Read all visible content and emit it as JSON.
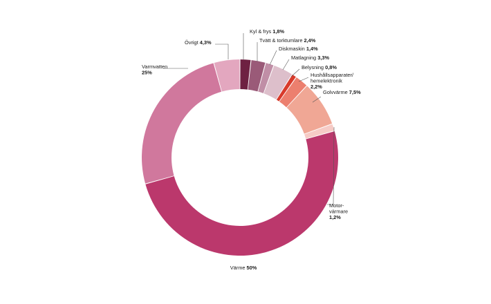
{
  "chart_data": {
    "type": "pie",
    "style": "donut",
    "title": "",
    "slices": [
      {
        "label": "Kyl & frys",
        "value": 1.8,
        "display": "1,8%",
        "color": "#6e2142"
      },
      {
        "label": "Tvätt & torktumlare",
        "value": 2.4,
        "display": "2,4%",
        "color": "#9a5a78"
      },
      {
        "label": "Diskmaskin",
        "value": 1.4,
        "display": "1,4%",
        "color": "#c08ea6"
      },
      {
        "label": "Matlagning",
        "value": 3.3,
        "display": "3,3%",
        "color": "#ddbfcb"
      },
      {
        "label": "Belysning",
        "value": 0.8,
        "display": "0,8%",
        "color": "#d83a2b"
      },
      {
        "label": "Hushållsapparater/ hemelektronik",
        "value": 2.2,
        "display": "2,2%",
        "color": "#ec7f6e"
      },
      {
        "label": "Golvvärme",
        "value": 7.5,
        "display": "7,5%",
        "color": "#f0a795"
      },
      {
        "label": "Motor- värmare",
        "value": 1.2,
        "display": "1,2%",
        "color": "#f6cbc6"
      },
      {
        "label": "Värme",
        "value": 50,
        "display": "50%",
        "color": "#bb386c"
      },
      {
        "label": "Varmvatten",
        "value": 25,
        "display": "25%",
        "color": "#d0789d"
      },
      {
        "label": "Övrigt",
        "value": 4.3,
        "display": "4,3%",
        "color": "#e3a7bf"
      }
    ]
  }
}
